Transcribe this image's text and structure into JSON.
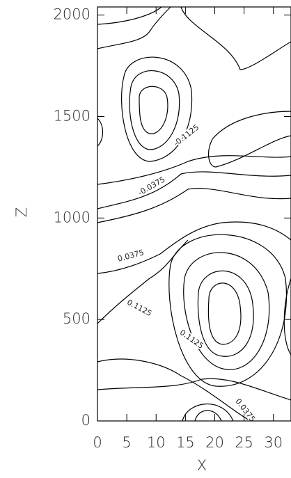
{
  "chart_data": {
    "type": "contour",
    "xlabel": "X",
    "ylabel": "Z",
    "xlim": [
      0,
      33
    ],
    "xticks": [
      0,
      5,
      10,
      15,
      20,
      25,
      30
    ],
    "ylim": [
      0,
      2040
    ],
    "yticks": [
      0,
      500,
      1000,
      1500,
      2000
    ],
    "levels": [
      -0.1875,
      -0.1125,
      -0.0375,
      0.0375,
      0.1125,
      0.1875
    ],
    "color": "#000000"
  }
}
